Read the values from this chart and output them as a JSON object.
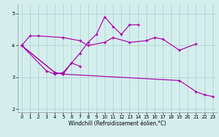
{
  "xlabel": "Windchill (Refroidissement éolien,°C)",
  "background_color": "#d4eeee",
  "grid_color": "#aacccc",
  "line_color": "#aa00aa",
  "ylim": [
    1.9,
    5.3
  ],
  "xlim": [
    -0.5,
    23.5
  ],
  "yticks": [
    2,
    3,
    4,
    5
  ],
  "xticks": [
    0,
    1,
    2,
    3,
    4,
    5,
    6,
    7,
    8,
    9,
    10,
    11,
    12,
    13,
    14,
    15,
    16,
    17,
    18,
    19,
    20,
    21,
    22,
    23
  ],
  "line1_x": [
    0,
    1,
    2,
    5,
    7,
    8,
    10,
    11,
    13,
    15,
    16,
    17,
    19,
    21
  ],
  "line1_y": [
    4.0,
    4.3,
    4.3,
    4.25,
    4.15,
    4.0,
    4.1,
    4.25,
    4.1,
    4.15,
    4.25,
    4.2,
    3.85,
    4.05
  ],
  "line2_x": [
    0,
    3,
    4,
    5,
    7,
    8,
    9,
    10,
    11,
    12,
    13,
    14
  ],
  "line2_y": [
    4.0,
    3.2,
    3.1,
    3.15,
    3.75,
    4.1,
    4.35,
    4.9,
    4.6,
    4.35,
    4.65,
    4.65
  ],
  "line3_x": [
    0,
    4,
    5,
    6,
    7
  ],
  "line3_y": [
    4.0,
    3.15,
    3.1,
    3.45,
    3.35
  ],
  "line4_x": [
    0,
    4,
    5,
    19,
    21,
    22,
    23
  ],
  "line4_y": [
    4.0,
    3.15,
    3.1,
    2.9,
    2.55,
    2.45,
    2.4
  ]
}
